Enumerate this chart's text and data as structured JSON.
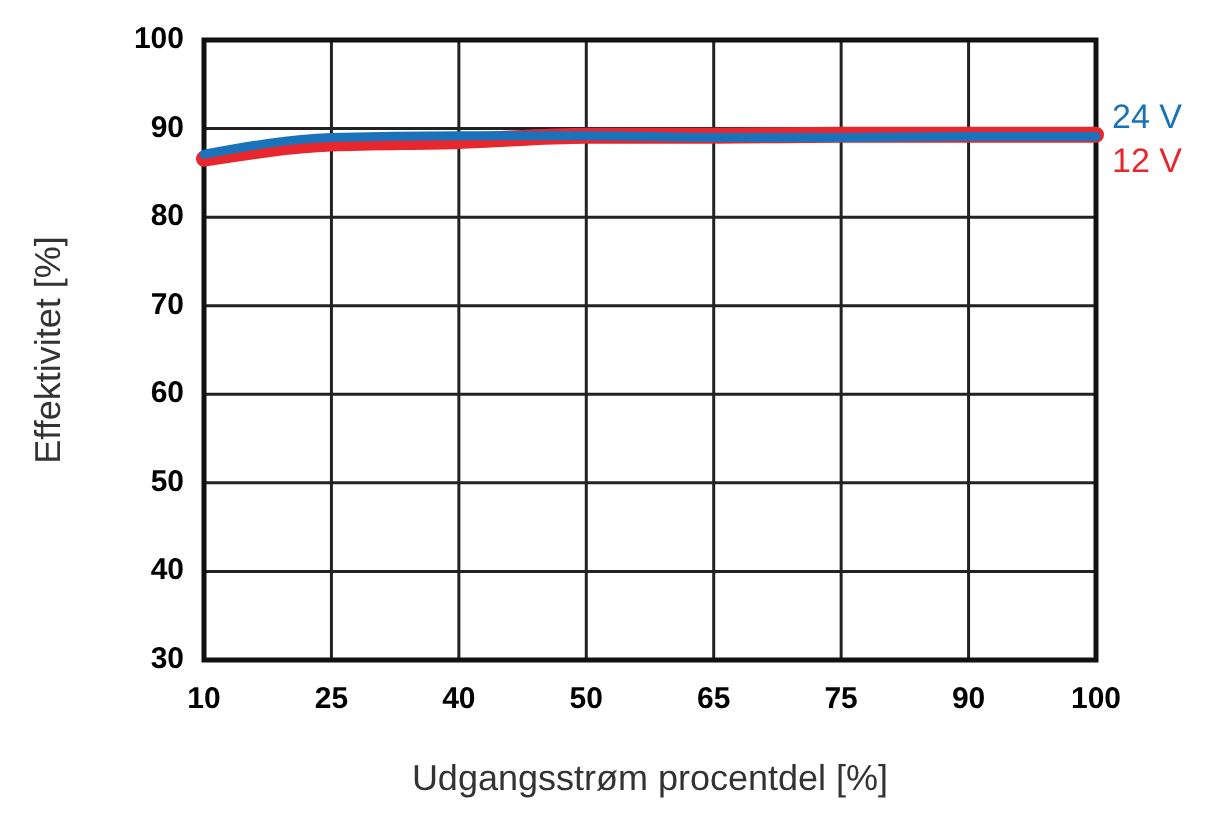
{
  "chart_data": {
    "type": "line",
    "xlabel": "Udgangsstrøm procentdel [%]",
    "ylabel": "Effektivitet [%]",
    "categories": [
      "10",
      "25",
      "40",
      "50",
      "65",
      "75",
      "90",
      "100"
    ],
    "series": [
      {
        "name": "12 V",
        "color": "#e8262d",
        "values": [
          86.6,
          88.3,
          88.6,
          89.2,
          89.2,
          89.3,
          89.3,
          89.3
        ]
      },
      {
        "name": "24 V",
        "color": "#1a73ba",
        "values": [
          87.1,
          89.0,
          89.2,
          89.2,
          89.0,
          89.0,
          89.1,
          89.1
        ]
      }
    ],
    "ylim": [
      30,
      100
    ],
    "yticks": [
      30,
      40,
      50,
      60,
      70,
      80,
      90,
      100
    ],
    "grid": true,
    "line_style": "solid",
    "marker": "none"
  }
}
